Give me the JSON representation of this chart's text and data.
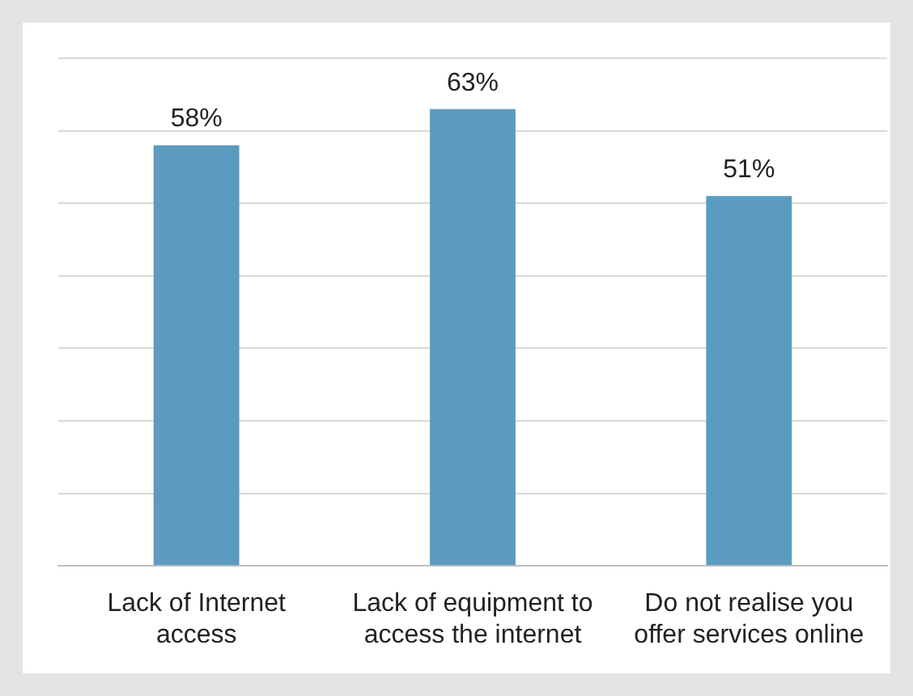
{
  "chart_data": {
    "type": "bar",
    "categories": [
      "Lack of Internet access",
      "Lack of equipment to access the internet",
      "Do not realise you offer services online"
    ],
    "values": [
      58,
      63,
      51
    ],
    "color": "#5b9bc0",
    "ylim": [
      0,
      70
    ],
    "yticks": [
      {
        "value": 0,
        "label": null
      },
      {
        "value": 10,
        "label": null
      },
      {
        "value": 20,
        "label": null
      },
      {
        "value": 30,
        "label": null
      },
      {
        "value": 40,
        "label": null
      },
      {
        "value": 50,
        "label": null
      },
      {
        "value": 60,
        "label": null
      },
      {
        "value": 70,
        "label": null
      }
    ],
    "tick_labels": "x",
    "grid": "y",
    "data_labels": true,
    "value_labels": [
      "58%",
      "63%",
      "51%"
    ]
  }
}
